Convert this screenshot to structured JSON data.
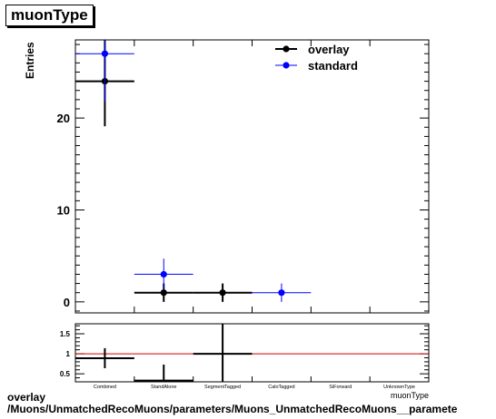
{
  "chart_data": [
    {
      "type": "scatter",
      "title": "muonType",
      "ylabel": "Entries",
      "xlabel": "muonType",
      "categories": [
        "Combined",
        "StandAlone",
        "SegmentTagged",
        "CaloTagged",
        "SiForward",
        "UnknownType"
      ],
      "ylim": [
        -1.2,
        28.5
      ],
      "yticks": [
        0,
        10,
        20
      ],
      "legend_position": "top-right",
      "series": [
        {
          "name": "overlay",
          "color": "#000000",
          "points": [
            {
              "x": 0.5,
              "y": 24,
              "xerr": 0.5,
              "yerr": 4.9
            },
            {
              "x": 1.5,
              "y": 1,
              "xerr": 0.5,
              "yerr": 1.0
            },
            {
              "x": 2.5,
              "y": 1,
              "xerr": 0.5,
              "yerr": 1.0
            }
          ]
        },
        {
          "name": "standard",
          "color": "#0000ff",
          "points": [
            {
              "x": 0.5,
              "y": 27,
              "xerr": 0.5,
              "yerr": 5.2
            },
            {
              "x": 1.5,
              "y": 3,
              "xerr": 0.5,
              "yerr": 1.7
            },
            {
              "x": 3.5,
              "y": 1,
              "xerr": 0.5,
              "yerr": 1.0
            }
          ]
        }
      ]
    },
    {
      "type": "scatter",
      "title": "",
      "ylim": [
        0.3,
        1.75
      ],
      "yticks": [
        0.5,
        1,
        1.5
      ],
      "ytick_labels": [
        "0.5",
        "1",
        "1.5"
      ],
      "reference_line": {
        "y": 1,
        "color": "#cc0000"
      },
      "series": [
        {
          "name": "",
          "color": "#000000",
          "points": [
            {
              "x": 0.5,
              "y": 0.89,
              "xerr": 0.5,
              "yerr": 0.25
            },
            {
              "x": 1.5,
              "y": 0.33,
              "xerr": 0.5,
              "yerr": 0.4
            },
            {
              "x": 2.5,
              "y": 1.0,
              "xerr": 0.5,
              "yerr": 1.0
            }
          ]
        }
      ]
    }
  ],
  "footer": {
    "line1": "overlay",
    "line2": "/Muons/UnmatchedRecoMuons/parameters/Muons_UnmatchedRecoMuons__paramete"
  }
}
